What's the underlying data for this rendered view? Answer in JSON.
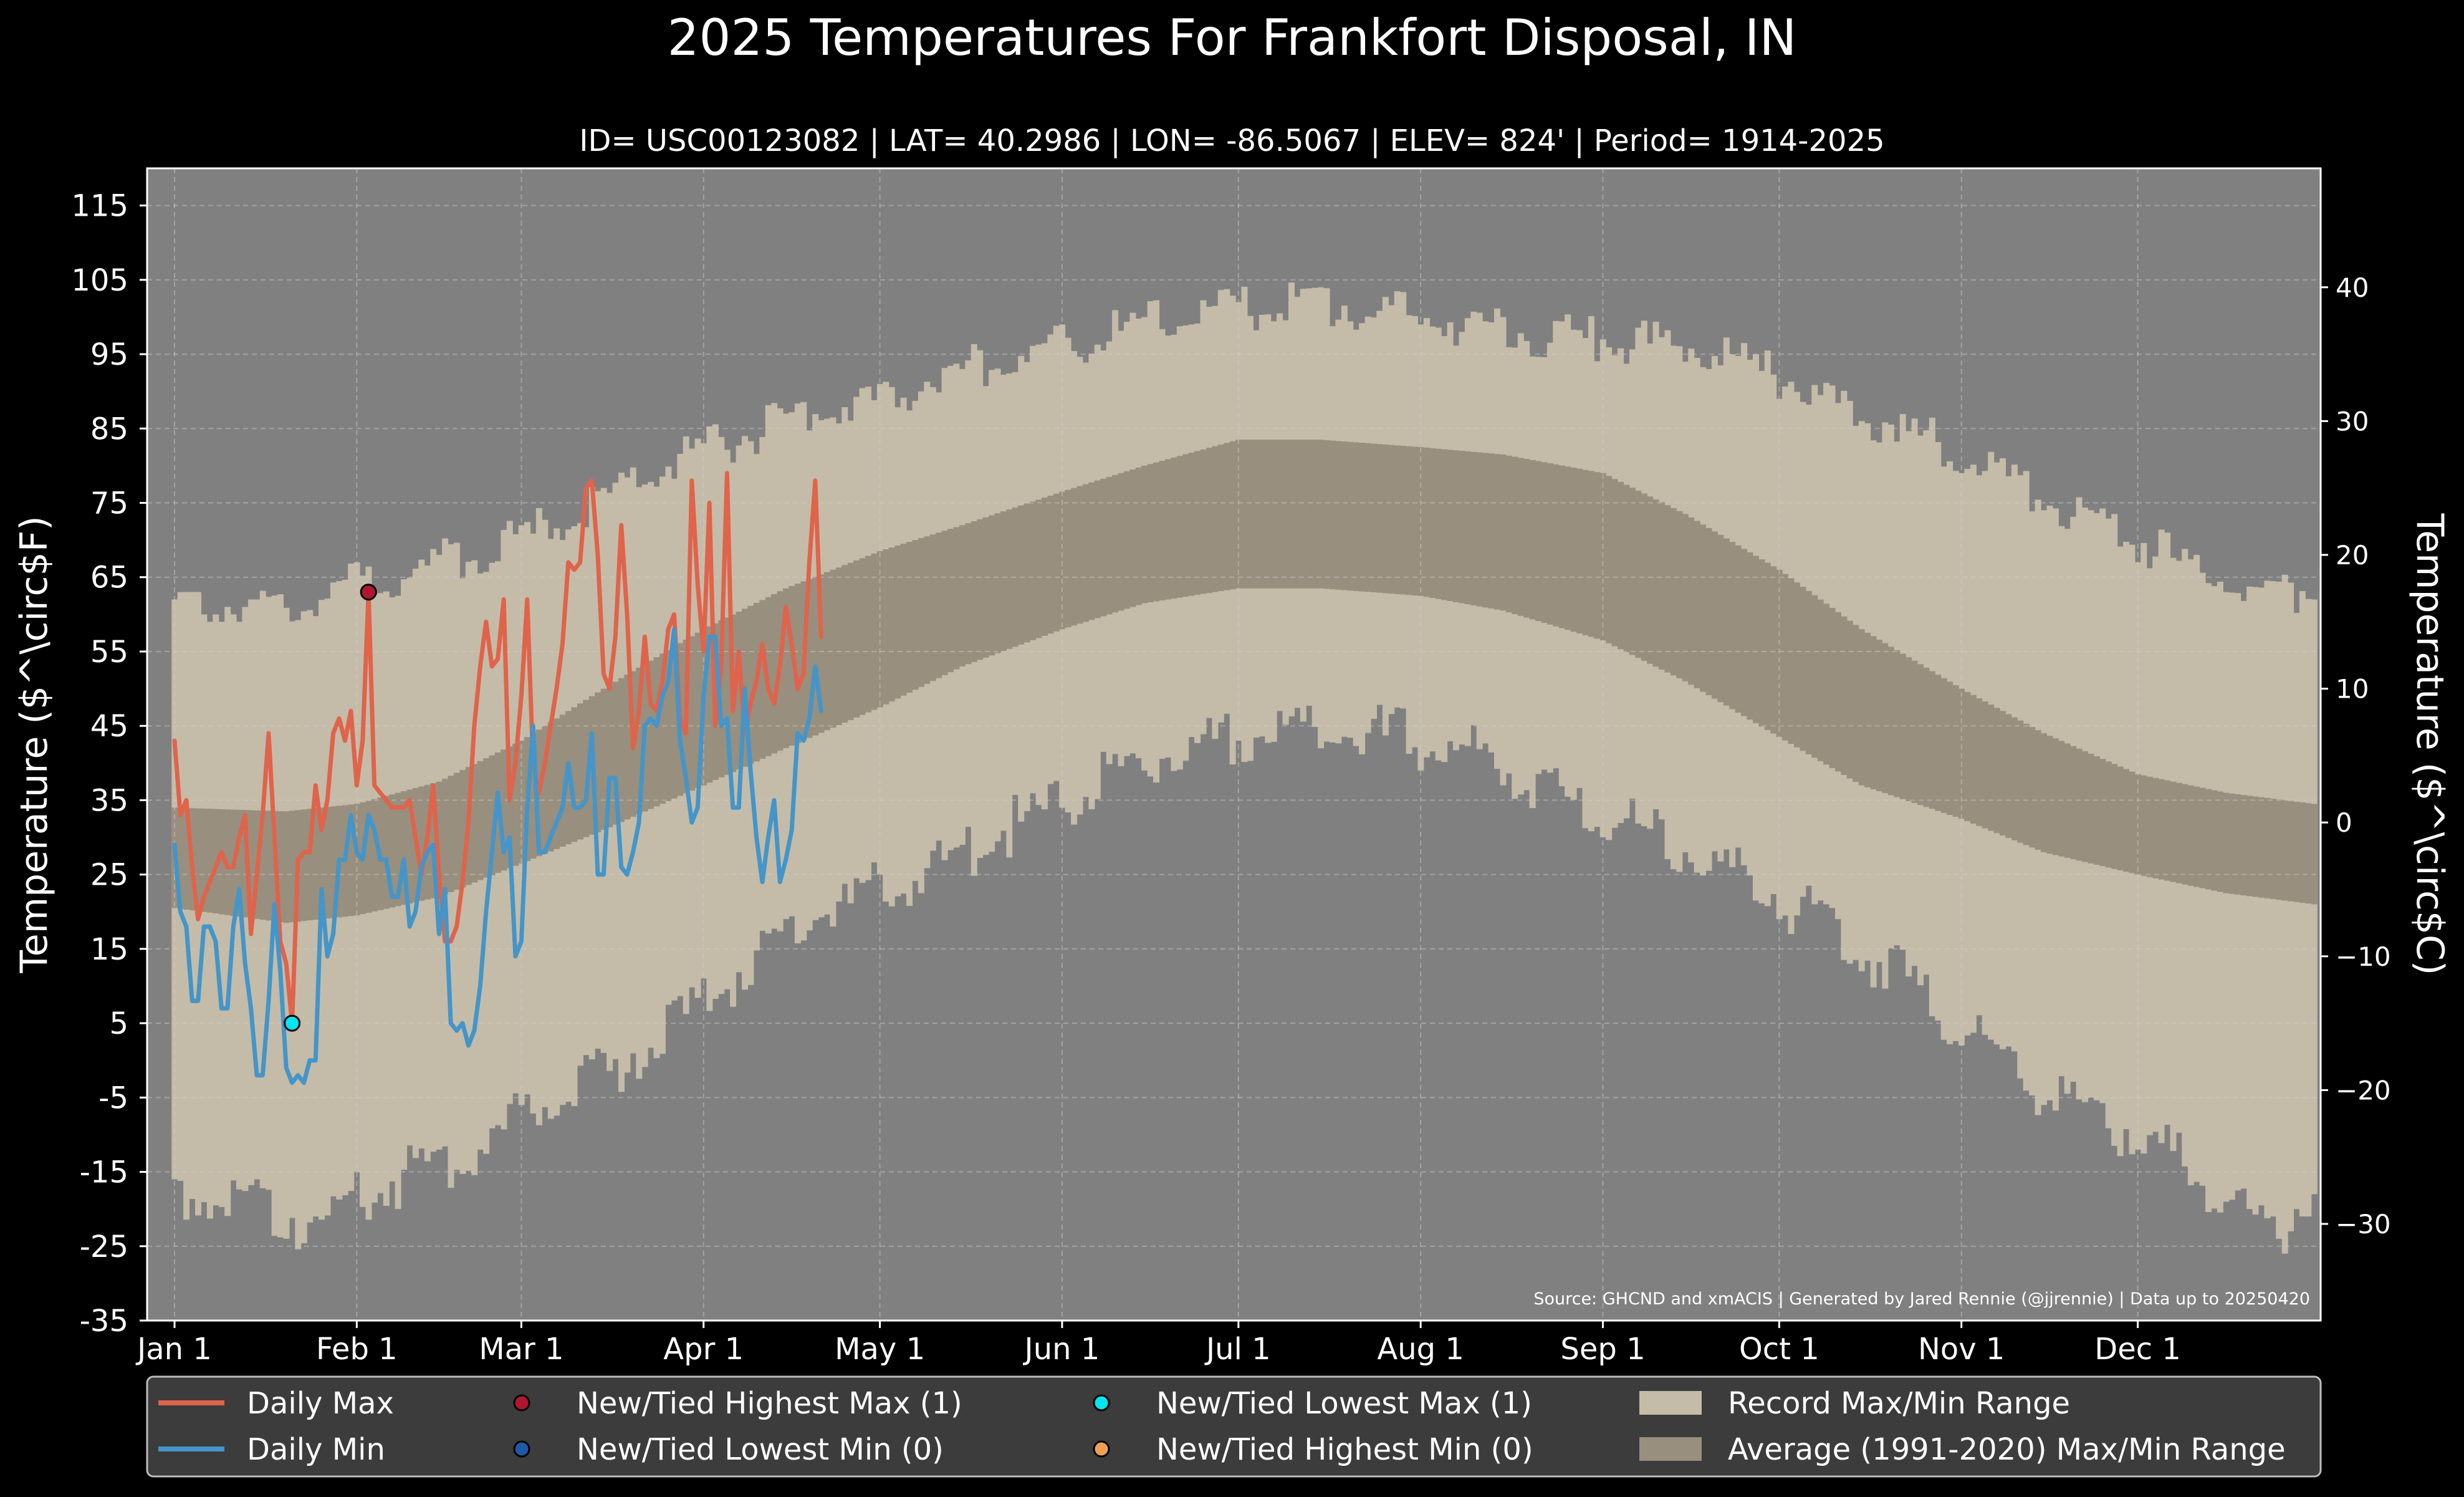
{
  "title": "2025 Temperatures For Frankfort Disposal, IN",
  "subtitle": "ID= USC00123082 | LAT= 40.2986 | LON= -86.5067 | ELEV= 824' | Period= 1914-2025",
  "source_note": "Source: GHCND and xmACIS | Generated by Jared Rennie (@jjrennie) | Data up to 20250420",
  "colors": {
    "background": "#000000",
    "plot_bg": "#808080",
    "record_band": "#c4bca8",
    "normal_band": "#988f7e",
    "daily_max": "#e0634b",
    "daily_min": "#4495c9",
    "high_max_marker": "#b01630",
    "low_min_marker": "#1f5aa8",
    "low_max_marker": "#00e5f0",
    "high_min_marker": "#f0a050",
    "legend_bg": "#3c3c3c"
  },
  "chart_data": {
    "type": "line",
    "x_unit": "day of year 2025",
    "xlim": [
      1,
      365
    ],
    "ylim_f": [
      -35,
      120
    ],
    "ylim_c": [
      -37.2,
      48.9
    ],
    "ylabel_left": "Temperature ($^\\circ$F)",
    "ylabel_right": "Temperature ($^\\circ$C)",
    "y_ticks_left": [
      "115",
      "105",
      "95",
      "85",
      "75",
      "65",
      "55",
      "45",
      "35",
      "25",
      "15",
      "5",
      "-5",
      "-15",
      "-25",
      "-35"
    ],
    "y_ticks_right": [
      "40",
      "30",
      "20",
      "10",
      "0",
      "−10",
      "−20",
      "−30"
    ],
    "x_ticks": [
      {
        "label": "Jan 1",
        "day": 1
      },
      {
        "label": "Feb 1",
        "day": 32
      },
      {
        "label": "Mar 1",
        "day": 60
      },
      {
        "label": "Apr 1",
        "day": 91
      },
      {
        "label": "May 1",
        "day": 121
      },
      {
        "label": "Jun 1",
        "day": 152
      },
      {
        "label": "Jul 1",
        "day": 182
      },
      {
        "label": "Aug 1",
        "day": 213
      },
      {
        "label": "Sep 1",
        "day": 244
      },
      {
        "label": "Oct 1",
        "day": 274
      },
      {
        "label": "Nov 1",
        "day": 305
      },
      {
        "label": "Dec 1",
        "day": 335
      }
    ],
    "grid": true,
    "legend_position": "bottom",
    "record_max_nodes": [
      [
        1,
        61
      ],
      [
        15,
        61
      ],
      [
        32,
        64
      ],
      [
        46,
        67
      ],
      [
        60,
        70
      ],
      [
        74,
        76
      ],
      [
        91,
        82
      ],
      [
        105,
        86
      ],
      [
        121,
        89
      ],
      [
        135,
        93
      ],
      [
        152,
        96
      ],
      [
        166,
        99
      ],
      [
        182,
        101
      ],
      [
        196,
        102
      ],
      [
        213,
        100
      ],
      [
        227,
        98
      ],
      [
        244,
        97
      ],
      [
        258,
        96
      ],
      [
        274,
        92
      ],
      [
        288,
        87
      ],
      [
        305,
        82
      ],
      [
        319,
        76
      ],
      [
        335,
        70
      ],
      [
        350,
        64
      ],
      [
        365,
        63
      ]
    ],
    "record_min_nodes": [
      [
        1,
        -17
      ],
      [
        15,
        -20
      ],
      [
        25,
        -22
      ],
      [
        32,
        -18
      ],
      [
        46,
        -14
      ],
      [
        60,
        -8
      ],
      [
        74,
        -2
      ],
      [
        91,
        8
      ],
      [
        105,
        17
      ],
      [
        121,
        23
      ],
      [
        135,
        28
      ],
      [
        152,
        35
      ],
      [
        166,
        40
      ],
      [
        182,
        43
      ],
      [
        196,
        45
      ],
      [
        213,
        43
      ],
      [
        227,
        40
      ],
      [
        244,
        33
      ],
      [
        258,
        28
      ],
      [
        274,
        22
      ],
      [
        288,
        15
      ],
      [
        305,
        5
      ],
      [
        319,
        -4
      ],
      [
        335,
        -10
      ],
      [
        350,
        -18
      ],
      [
        358,
        -24
      ],
      [
        365,
        -17
      ]
    ],
    "normal_max_nodes": [
      [
        1,
        34
      ],
      [
        20,
        33.5
      ],
      [
        32,
        34.5
      ],
      [
        46,
        37.5
      ],
      [
        60,
        43
      ],
      [
        74,
        50
      ],
      [
        91,
        58
      ],
      [
        105,
        63.5
      ],
      [
        121,
        68.5
      ],
      [
        135,
        72
      ],
      [
        152,
        76.5
      ],
      [
        166,
        80
      ],
      [
        182,
        83.5
      ],
      [
        196,
        83.5
      ],
      [
        213,
        82.5
      ],
      [
        227,
        81.5
      ],
      [
        244,
        79
      ],
      [
        258,
        73.5
      ],
      [
        274,
        66
      ],
      [
        288,
        58
      ],
      [
        305,
        50
      ],
      [
        319,
        44
      ],
      [
        335,
        38.5
      ],
      [
        350,
        36
      ],
      [
        365,
        34.5
      ]
    ],
    "normal_min_nodes": [
      [
        1,
        20.5
      ],
      [
        20,
        18.5
      ],
      [
        32,
        19.5
      ],
      [
        46,
        22
      ],
      [
        60,
        26.5
      ],
      [
        74,
        31
      ],
      [
        91,
        37
      ],
      [
        105,
        42
      ],
      [
        121,
        47.5
      ],
      [
        135,
        53
      ],
      [
        152,
        58
      ],
      [
        166,
        61.5
      ],
      [
        182,
        63.5
      ],
      [
        196,
        63.5
      ],
      [
        213,
        62.5
      ],
      [
        227,
        60.5
      ],
      [
        244,
        56.5
      ],
      [
        258,
        51
      ],
      [
        274,
        43.5
      ],
      [
        288,
        37
      ],
      [
        305,
        32.5
      ],
      [
        319,
        28
      ],
      [
        335,
        25
      ],
      [
        350,
        22.5
      ],
      [
        365,
        21
      ]
    ],
    "series": [
      {
        "name": "Daily Max",
        "color_key": "daily_max",
        "values": [
          43,
          33,
          35,
          26,
          19,
          22,
          24,
          26,
          28,
          26,
          26,
          30,
          33,
          17,
          25,
          33,
          44,
          30,
          16,
          13,
          5,
          27,
          28,
          28,
          37,
          31,
          35,
          44,
          46,
          43,
          47,
          37,
          43,
          63,
          37,
          36,
          35,
          34,
          34,
          34,
          35,
          30,
          25,
          30,
          37,
          25,
          16,
          16,
          18,
          24,
          32,
          45,
          53,
          59,
          53,
          54,
          62,
          35,
          40,
          49,
          62,
          40,
          36,
          40,
          45,
          50,
          56,
          67,
          66,
          67,
          77,
          78,
          68,
          52,
          50,
          57,
          72,
          60,
          42,
          47,
          57,
          48,
          47,
          51,
          58,
          60,
          46,
          44,
          78,
          64,
          55,
          75,
          45,
          53,
          79,
          47,
          55,
          44,
          48,
          51,
          56,
          50,
          48,
          53,
          61,
          56,
          50,
          52,
          67,
          78,
          57
        ]
      },
      {
        "name": "Daily Min",
        "color_key": "daily_min",
        "values": [
          29,
          20,
          18,
          8,
          8,
          18,
          18,
          16,
          7,
          7,
          18,
          23,
          13,
          7,
          -2,
          -2,
          8,
          21,
          12,
          -1,
          -3,
          -2,
          -3,
          0,
          0,
          23,
          14,
          17,
          27,
          27,
          33,
          28,
          27,
          33,
          31,
          27,
          27,
          22,
          22,
          27,
          18,
          20,
          26,
          28,
          29,
          17,
          23,
          5,
          4,
          5,
          2,
          4,
          10,
          20,
          28,
          36,
          28,
          30,
          14,
          16,
          34,
          45,
          28,
          28,
          30,
          32,
          34,
          40,
          34,
          34,
          35,
          44,
          25,
          25,
          38,
          38,
          26,
          25,
          28,
          32,
          45,
          46,
          45,
          49,
          51,
          58,
          43,
          38,
          32,
          34,
          49,
          57,
          57,
          45,
          46,
          34,
          34,
          50,
          39,
          30,
          24,
          30,
          35,
          24,
          27,
          31,
          44,
          43,
          46,
          53,
          47
        ]
      }
    ],
    "markers": [
      {
        "label": "New/Tied Highest Max",
        "day": 34,
        "value": 63,
        "color_key": "high_max_marker"
      },
      {
        "label": "New/Tied Lowest Max",
        "day": 21,
        "value": 5,
        "color_key": "low_max_marker"
      }
    ],
    "legend": [
      {
        "kind": "line",
        "label": "Daily Max",
        "color_key": "daily_max"
      },
      {
        "kind": "marker",
        "label": "New/Tied Highest Max (1)",
        "color_key": "high_max_marker"
      },
      {
        "kind": "marker",
        "label": "New/Tied Lowest Max (1)",
        "color_key": "low_max_marker"
      },
      {
        "kind": "patch",
        "label": "Record Max/Min Range",
        "color_key": "record_band"
      },
      {
        "kind": "line",
        "label": "Daily Min",
        "color_key": "daily_min"
      },
      {
        "kind": "marker",
        "label": "New/Tied Lowest Min (0)",
        "color_key": "low_min_marker"
      },
      {
        "kind": "marker",
        "label": "New/Tied Highest Min (0)",
        "color_key": "high_min_marker"
      },
      {
        "kind": "patch",
        "label": "Average (1991-2020) Max/Min Range",
        "color_key": "normal_band"
      }
    ]
  }
}
